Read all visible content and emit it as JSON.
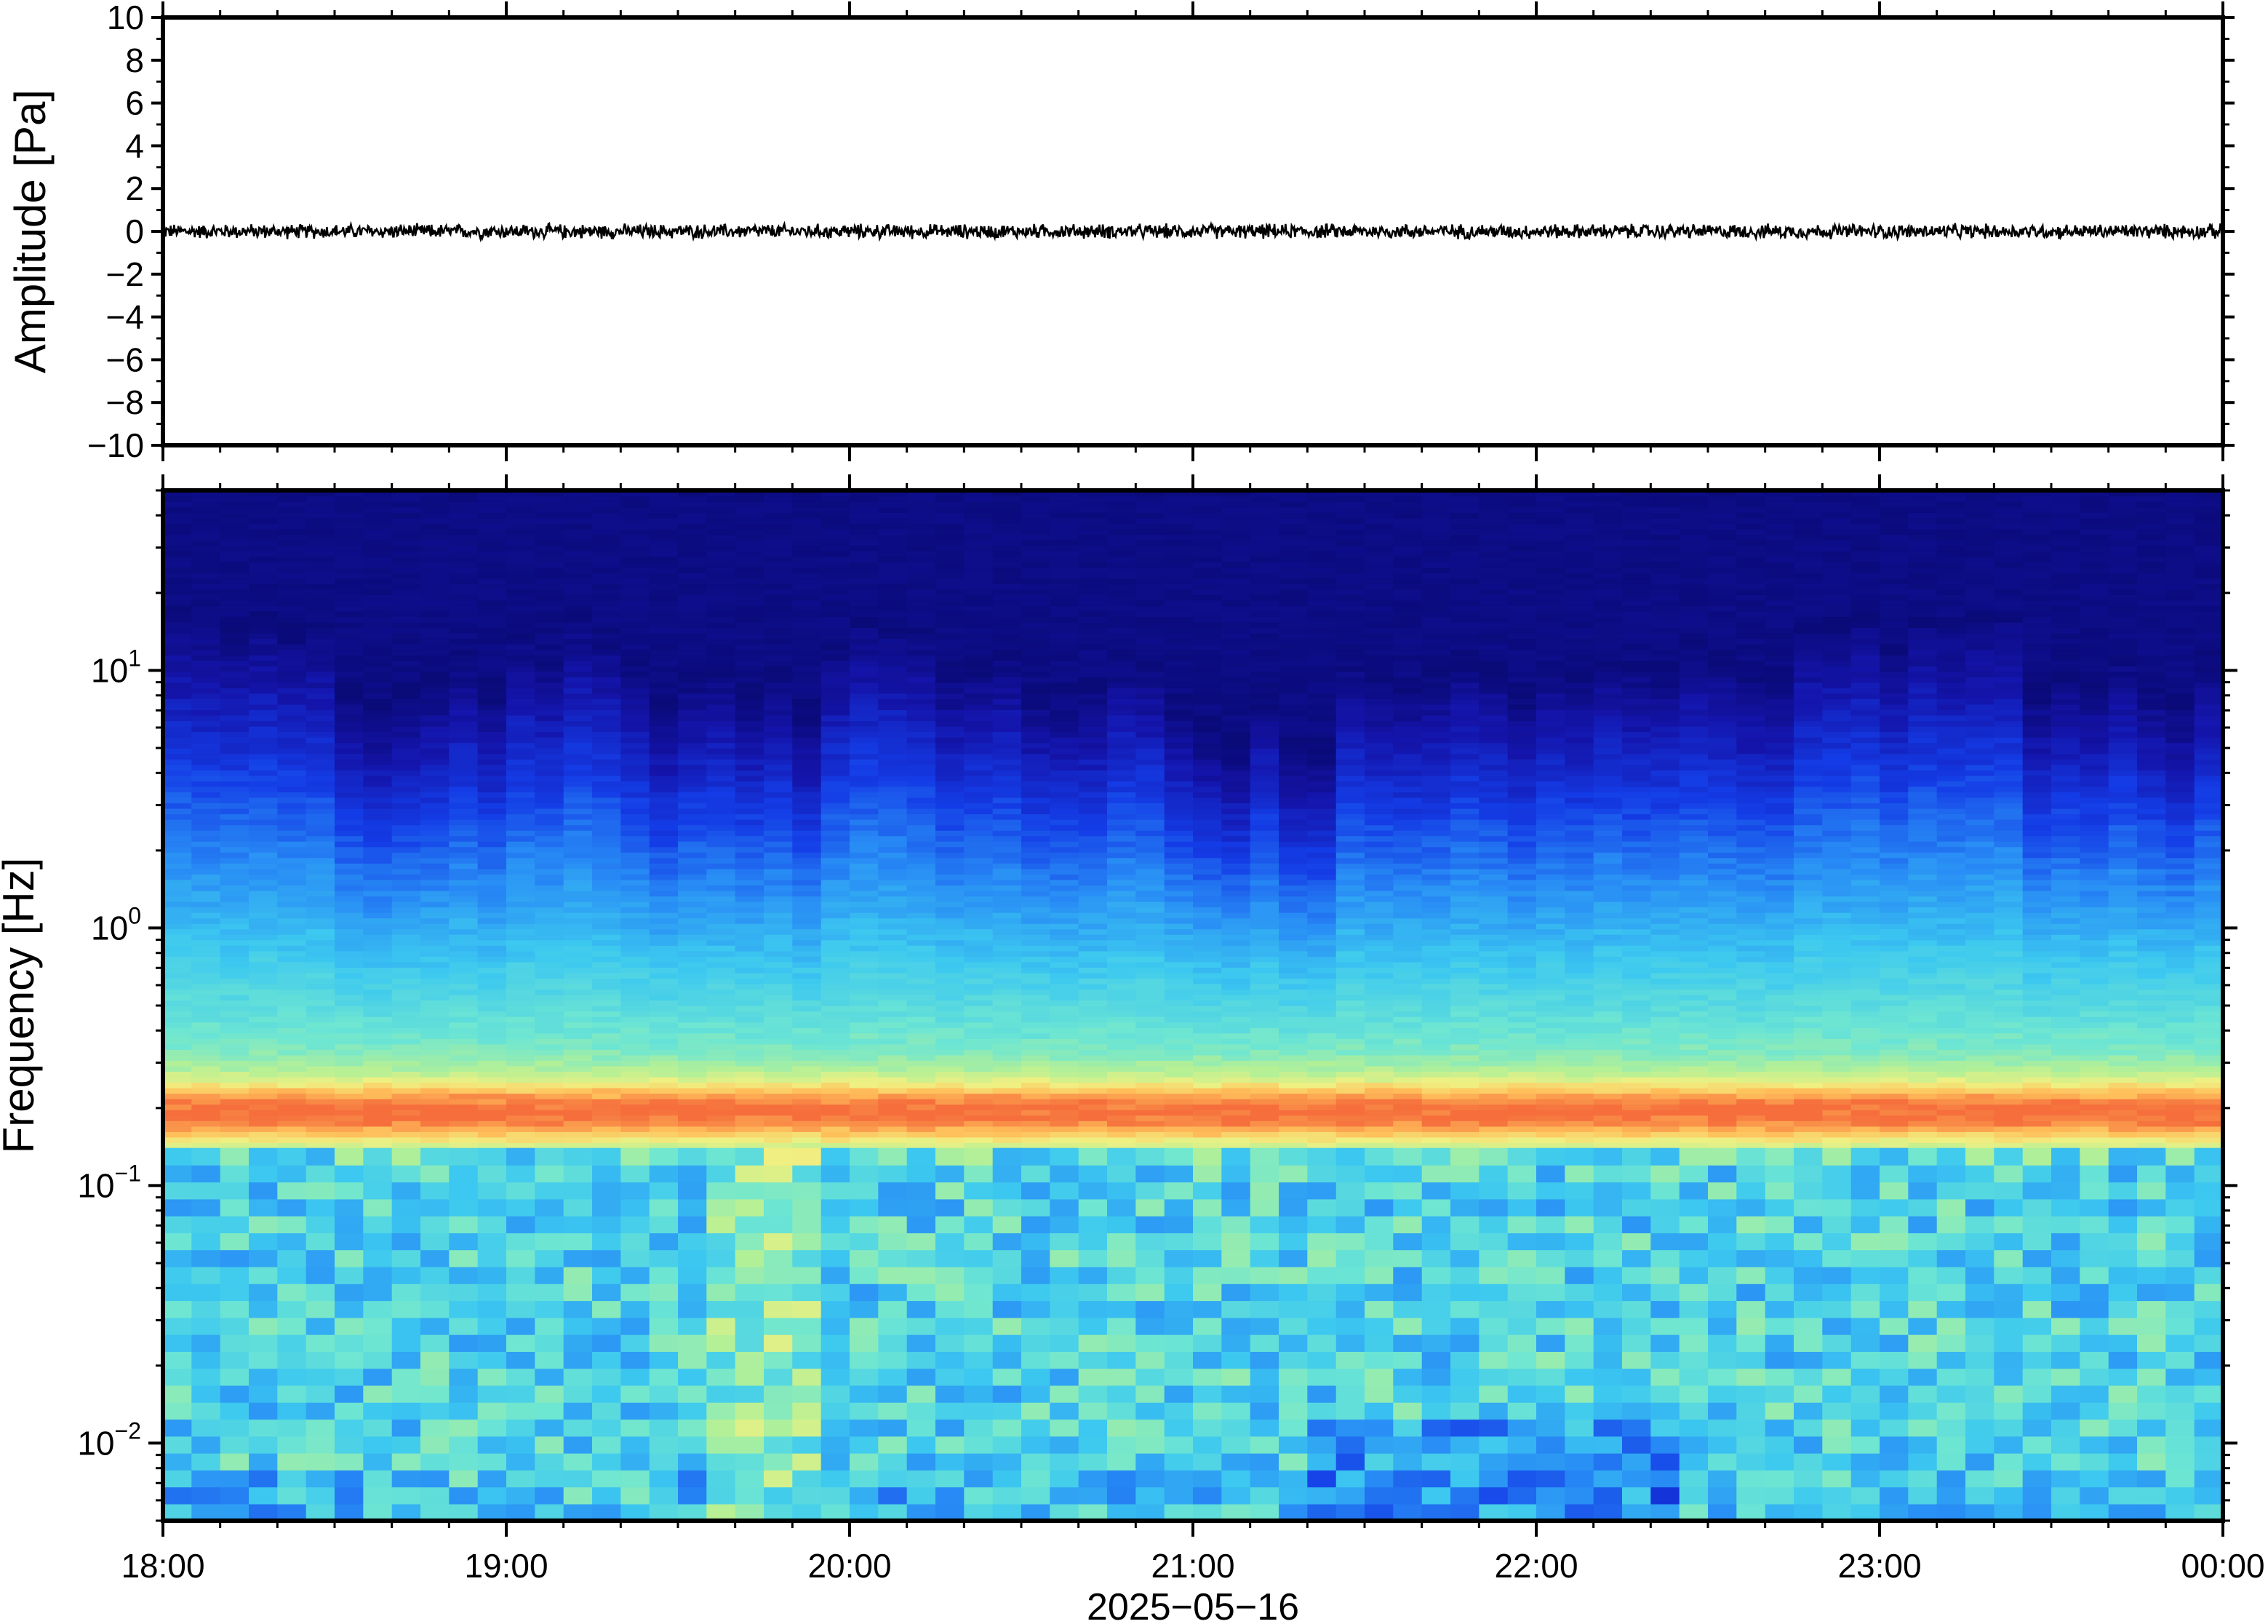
{
  "chart_data": [
    {
      "type": "line",
      "panel": "waveform",
      "ylabel": "Amplitude [Pa]",
      "ylim": [
        -10,
        10
      ],
      "yticks": [
        10,
        8,
        6,
        4,
        2,
        0,
        -2,
        -4,
        -6,
        -8,
        -10
      ],
      "ytick_labels": [
        "10",
        "8",
        "6",
        "4",
        "2",
        "0",
        "−2",
        "−4",
        "−6",
        "−8",
        "−10"
      ],
      "x_range": [
        "2025-05-16 18:00",
        "2025-05-17 00:00"
      ],
      "series": [
        {
          "description_values": "near-zero trace",
          "approx_peak_amplitude": 0.4,
          "baseline": 0
        }
      ],
      "grid": false
    },
    {
      "type": "heatmap",
      "panel": "spectrogram",
      "ylabel": "Frequency [Hz]",
      "yscale": "log",
      "ylim": [
        0.005,
        50
      ],
      "yticks": [
        0.01,
        0.1,
        1,
        10
      ],
      "ytick_labels": [
        {
          "base": "10",
          "exp": "−2"
        },
        {
          "base": "10",
          "exp": "−1"
        },
        {
          "base": "10",
          "exp": "0"
        },
        {
          "base": "10",
          "exp": "1"
        }
      ],
      "xlabel": "2025−05−16",
      "xticks": [
        "18:00",
        "19:00",
        "20:00",
        "21:00",
        "22:00",
        "23:00",
        "00:00"
      ],
      "colormap": "jet",
      "features": {
        "microseism_peak_hz": [
          0.15,
          0.25
        ],
        "high_frequency_energy_cutoff_hz": 10
      },
      "grid": false
    }
  ],
  "colors": {
    "colormap_low": "#0a0a78",
    "colormap_mid": "#40c8e0",
    "colormap_high": "#ff8a30",
    "frame": "#000000"
  }
}
